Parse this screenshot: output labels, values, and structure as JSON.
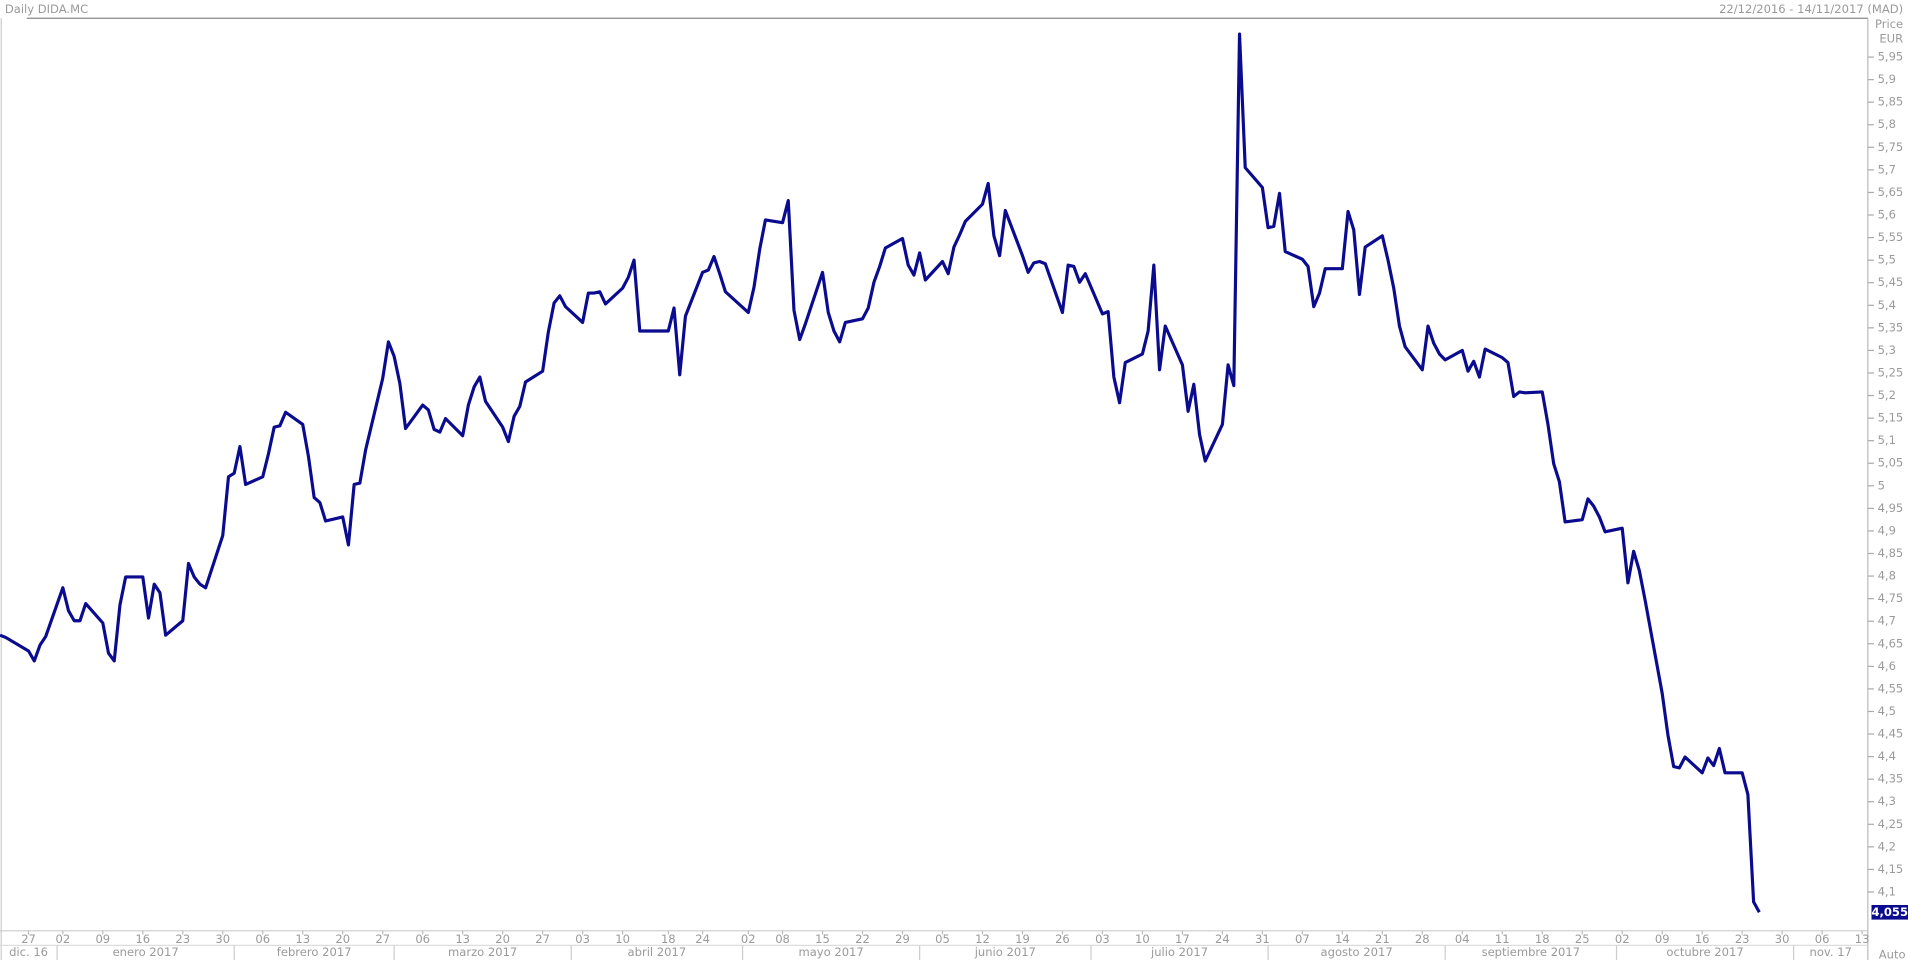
{
  "header": {
    "title": "Daily DIDA.MC",
    "range": "22/12/2016 - 14/11/2017 (MAD)",
    "scale_mode": "Auto"
  },
  "chart_data": {
    "type": "line",
    "y_axis_label": "Price",
    "y_axis_unit": "EUR",
    "xlim": [
      "2016-12-22",
      "2017-11-14"
    ],
    "ylim": [
      4.014,
      6.036
    ],
    "yticks": [
      {
        "value": 4.1,
        "label": "4,1"
      },
      {
        "value": 4.15,
        "label": "4,15"
      },
      {
        "value": 4.2,
        "label": "4,2"
      },
      {
        "value": 4.25,
        "label": "4,25"
      },
      {
        "value": 4.3,
        "label": "4,3"
      },
      {
        "value": 4.35,
        "label": "4,35"
      },
      {
        "value": 4.4,
        "label": "4,4"
      },
      {
        "value": 4.45,
        "label": "4,45"
      },
      {
        "value": 4.5,
        "label": "4,5"
      },
      {
        "value": 4.55,
        "label": "4,55"
      },
      {
        "value": 4.6,
        "label": "4,6"
      },
      {
        "value": 4.65,
        "label": "4,65"
      },
      {
        "value": 4.7,
        "label": "4,7"
      },
      {
        "value": 4.75,
        "label": "4,75"
      },
      {
        "value": 4.8,
        "label": "4,8"
      },
      {
        "value": 4.85,
        "label": "4,85"
      },
      {
        "value": 4.9,
        "label": "4,9"
      },
      {
        "value": 4.95,
        "label": "4,95"
      },
      5,
      {
        "value": 5.05,
        "label": "5,05"
      },
      {
        "value": 5.1,
        "label": "5,1"
      },
      {
        "value": 5.15,
        "label": "5,15"
      },
      {
        "value": 5.2,
        "label": "5,2"
      },
      {
        "value": 5.25,
        "label": "5,25"
      },
      {
        "value": 5.3,
        "label": "5,3"
      },
      {
        "value": 5.35,
        "label": "5,35"
      },
      {
        "value": 5.4,
        "label": "5,4"
      },
      {
        "value": 5.45,
        "label": "5,45"
      },
      {
        "value": 5.5,
        "label": "5,5"
      },
      {
        "value": 5.55,
        "label": "5,55"
      },
      {
        "value": 5.6,
        "label": "5,6"
      },
      {
        "value": 5.65,
        "label": "5,65"
      },
      {
        "value": 5.7,
        "label": "5,7"
      },
      {
        "value": 5.75,
        "label": "5,75"
      },
      {
        "value": 5.8,
        "label": "5,8"
      },
      {
        "value": 5.85,
        "label": "5,85"
      },
      {
        "value": 5.9,
        "label": "5,9"
      },
      {
        "value": 5.95,
        "label": "5,95"
      }
    ],
    "xticks": [
      {
        "value": "2016-12-27",
        "label": "27"
      },
      {
        "value": "2017-01-02",
        "label": "02"
      },
      {
        "value": "2017-01-09",
        "label": "09"
      },
      {
        "value": "2017-01-16",
        "label": "16"
      },
      {
        "value": "2017-01-23",
        "label": "23"
      },
      {
        "value": "2017-01-30",
        "label": "30"
      },
      {
        "value": "2017-02-06",
        "label": "06"
      },
      {
        "value": "2017-02-13",
        "label": "13"
      },
      {
        "value": "2017-02-20",
        "label": "20"
      },
      {
        "value": "2017-02-27",
        "label": "27"
      },
      {
        "value": "2017-03-06",
        "label": "06"
      },
      {
        "value": "2017-03-13",
        "label": "13"
      },
      {
        "value": "2017-03-20",
        "label": "20"
      },
      {
        "value": "2017-03-27",
        "label": "27"
      },
      {
        "value": "2017-04-03",
        "label": "03"
      },
      {
        "value": "2017-04-10",
        "label": "10"
      },
      {
        "value": "2017-04-18",
        "label": "18"
      },
      {
        "value": "2017-04-24",
        "label": "24"
      },
      {
        "value": "2017-05-02",
        "label": "02"
      },
      {
        "value": "2017-05-08",
        "label": "08"
      },
      {
        "value": "2017-05-15",
        "label": "15"
      },
      {
        "value": "2017-05-22",
        "label": "22"
      },
      {
        "value": "2017-05-29",
        "label": "29"
      },
      {
        "value": "2017-06-05",
        "label": "05"
      },
      {
        "value": "2017-06-12",
        "label": "12"
      },
      {
        "value": "2017-06-19",
        "label": "19"
      },
      {
        "value": "2017-06-26",
        "label": "26"
      },
      {
        "value": "2017-07-03",
        "label": "03"
      },
      {
        "value": "2017-07-10",
        "label": "10"
      },
      {
        "value": "2017-07-17",
        "label": "17"
      },
      {
        "value": "2017-07-24",
        "label": "24"
      },
      {
        "value": "2017-07-31",
        "label": "31"
      },
      {
        "value": "2017-08-07",
        "label": "07"
      },
      {
        "value": "2017-08-14",
        "label": "14"
      },
      {
        "value": "2017-08-21",
        "label": "21"
      },
      {
        "value": "2017-08-28",
        "label": "28"
      },
      {
        "value": "2017-09-04",
        "label": "04"
      },
      {
        "value": "2017-09-11",
        "label": "11"
      },
      {
        "value": "2017-09-18",
        "label": "18"
      },
      {
        "value": "2017-09-25",
        "label": "25"
      },
      {
        "value": "2017-10-02",
        "label": "02"
      },
      {
        "value": "2017-10-09",
        "label": "09"
      },
      {
        "value": "2017-10-16",
        "label": "16"
      },
      {
        "value": "2017-10-23",
        "label": "23"
      },
      {
        "value": "2017-10-30",
        "label": "30"
      },
      {
        "value": "2017-11-06",
        "label": "06"
      },
      {
        "value": "2017-11-13",
        "label": "13"
      }
    ],
    "month_labels": [
      {
        "value": "2016-12-01",
        "label": "dic. 16"
      },
      {
        "value": "2017-01-01",
        "label": "enero 2017"
      },
      {
        "value": "2017-02-01",
        "label": "febrero 2017"
      },
      {
        "value": "2017-03-01",
        "label": "marzo 2017"
      },
      {
        "value": "2017-04-01",
        "label": "abril 2017"
      },
      {
        "value": "2017-05-01",
        "label": "mayo 2017"
      },
      {
        "value": "2017-06-01",
        "label": "junio 2017"
      },
      {
        "value": "2017-07-01",
        "label": "julio 2017"
      },
      {
        "value": "2017-08-01",
        "label": "agosto 2017"
      },
      {
        "value": "2017-09-01",
        "label": "septiembre 2017"
      },
      {
        "value": "2017-10-01",
        "label": "octubre 2017"
      },
      {
        "value": "2017-11-01",
        "label": "nov. 17"
      }
    ],
    "last_price": {
      "value": 4.055,
      "label": "4,055"
    },
    "series": [
      {
        "name": "DIDA.MC",
        "color": "#0b0b8f",
        "x": [
          "2016-12-22",
          "2016-12-23",
          "2016-12-27",
          "2016-12-28",
          "2016-12-29",
          "2016-12-30",
          "2017-01-02",
          "2017-01-03",
          "2017-01-04",
          "2017-01-05",
          "2017-01-06",
          "2017-01-09",
          "2017-01-10",
          "2017-01-11",
          "2017-01-12",
          "2017-01-13",
          "2017-01-16",
          "2017-01-17",
          "2017-01-18",
          "2017-01-19",
          "2017-01-20",
          "2017-01-23",
          "2017-01-24",
          "2017-01-25",
          "2017-01-26",
          "2017-01-27",
          "2017-01-30",
          "2017-01-31",
          "2017-02-01",
          "2017-02-02",
          "2017-02-03",
          "2017-02-06",
          "2017-02-07",
          "2017-02-08",
          "2017-02-09",
          "2017-02-10",
          "2017-02-13",
          "2017-02-14",
          "2017-02-15",
          "2017-02-16",
          "2017-02-17",
          "2017-02-20",
          "2017-02-21",
          "2017-02-22",
          "2017-02-23",
          "2017-02-24",
          "2017-02-27",
          "2017-02-28",
          "2017-03-01",
          "2017-03-02",
          "2017-03-03",
          "2017-03-06",
          "2017-03-07",
          "2017-03-08",
          "2017-03-09",
          "2017-03-10",
          "2017-03-13",
          "2017-03-14",
          "2017-03-15",
          "2017-03-16",
          "2017-03-17",
          "2017-03-20",
          "2017-03-21",
          "2017-03-22",
          "2017-03-23",
          "2017-03-24",
          "2017-03-27",
          "2017-03-28",
          "2017-03-29",
          "2017-03-30",
          "2017-03-31",
          "2017-04-03",
          "2017-04-04",
          "2017-04-05",
          "2017-04-06",
          "2017-04-07",
          "2017-04-10",
          "2017-04-11",
          "2017-04-12",
          "2017-04-13",
          "2017-04-18",
          "2017-04-19",
          "2017-04-20",
          "2017-04-21",
          "2017-04-24",
          "2017-04-25",
          "2017-04-26",
          "2017-04-27",
          "2017-04-28",
          "2017-05-02",
          "2017-05-03",
          "2017-05-04",
          "2017-05-05",
          "2017-05-08",
          "2017-05-09",
          "2017-05-10",
          "2017-05-11",
          "2017-05-12",
          "2017-05-15",
          "2017-05-16",
          "2017-05-17",
          "2017-05-18",
          "2017-05-19",
          "2017-05-22",
          "2017-05-23",
          "2017-05-24",
          "2017-05-25",
          "2017-05-26",
          "2017-05-29",
          "2017-05-30",
          "2017-05-31",
          "2017-06-01",
          "2017-06-02",
          "2017-06-05",
          "2017-06-06",
          "2017-06-07",
          "2017-06-08",
          "2017-06-09",
          "2017-06-12",
          "2017-06-13",
          "2017-06-14",
          "2017-06-15",
          "2017-06-16",
          "2017-06-19",
          "2017-06-20",
          "2017-06-21",
          "2017-06-22",
          "2017-06-23",
          "2017-06-26",
          "2017-06-27",
          "2017-06-28",
          "2017-06-29",
          "2017-06-30",
          "2017-07-03",
          "2017-07-04",
          "2017-07-05",
          "2017-07-06",
          "2017-07-07",
          "2017-07-10",
          "2017-07-11",
          "2017-07-12",
          "2017-07-13",
          "2017-07-14",
          "2017-07-17",
          "2017-07-18",
          "2017-07-19",
          "2017-07-20",
          "2017-07-21",
          "2017-07-24",
          "2017-07-25",
          "2017-07-26",
          "2017-07-27",
          "2017-07-28",
          "2017-07-31",
          "2017-08-01",
          "2017-08-02",
          "2017-08-03",
          "2017-08-04",
          "2017-08-07",
          "2017-08-08",
          "2017-08-09",
          "2017-08-10",
          "2017-08-11",
          "2017-08-14",
          "2017-08-15",
          "2017-08-16",
          "2017-08-17",
          "2017-08-18",
          "2017-08-21",
          "2017-08-22",
          "2017-08-23",
          "2017-08-24",
          "2017-08-25",
          "2017-08-28",
          "2017-08-29",
          "2017-08-30",
          "2017-08-31",
          "2017-09-01",
          "2017-09-04",
          "2017-09-05",
          "2017-09-06",
          "2017-09-07",
          "2017-09-08",
          "2017-09-11",
          "2017-09-12",
          "2017-09-13",
          "2017-09-14",
          "2017-09-15",
          "2017-09-18",
          "2017-09-19",
          "2017-09-20",
          "2017-09-21",
          "2017-09-22",
          "2017-09-25",
          "2017-09-26",
          "2017-09-27",
          "2017-09-28",
          "2017-09-29",
          "2017-10-02",
          "2017-10-03",
          "2017-10-04",
          "2017-10-05",
          "2017-10-06",
          "2017-10-09",
          "2017-10-10",
          "2017-10-11",
          "2017-10-12",
          "2017-10-13",
          "2017-10-16",
          "2017-10-17",
          "2017-10-18",
          "2017-10-19",
          "2017-10-20",
          "2017-10-23",
          "2017-10-24",
          "2017-10-25",
          "2017-10-26"
        ],
        "values": [
          4.669,
          4.664,
          4.634,
          4.612,
          4.647,
          4.666,
          4.774,
          4.723,
          4.701,
          4.701,
          4.739,
          4.696,
          4.629,
          4.612,
          4.736,
          4.798,
          4.798,
          4.707,
          4.782,
          4.763,
          4.669,
          4.701,
          4.828,
          4.798,
          4.782,
          4.774,
          4.89,
          5.02,
          5.028,
          5.087,
          5.003,
          5.02,
          5.071,
          5.13,
          5.133,
          5.163,
          5.136,
          5.065,
          4.974,
          4.963,
          4.922,
          4.931,
          4.869,
          5.003,
          5.006,
          5.079,
          5.238,
          5.319,
          5.287,
          5.227,
          5.127,
          5.179,
          5.168,
          5.125,
          5.119,
          5.149,
          5.111,
          5.179,
          5.219,
          5.241,
          5.187,
          5.13,
          5.098,
          5.154,
          5.176,
          5.23,
          5.254,
          5.341,
          5.405,
          5.421,
          5.397,
          5.362,
          5.427,
          5.427,
          5.43,
          5.403,
          5.438,
          5.462,
          5.5,
          5.343,
          5.343,
          5.394,
          5.246,
          5.376,
          5.473,
          5.478,
          5.508,
          5.47,
          5.43,
          5.384,
          5.44,
          5.524,
          5.589,
          5.583,
          5.632,
          5.389,
          5.324,
          5.359,
          5.473,
          5.384,
          5.343,
          5.319,
          5.362,
          5.37,
          5.394,
          5.451,
          5.486,
          5.527,
          5.548,
          5.489,
          5.467,
          5.516,
          5.456,
          5.497,
          5.47,
          5.529,
          5.556,
          5.586,
          5.624,
          5.67,
          5.554,
          5.51,
          5.61,
          5.51,
          5.473,
          5.494,
          5.497,
          5.492,
          5.384,
          5.489,
          5.486,
          5.451,
          5.47,
          5.381,
          5.386,
          5.241,
          5.184,
          5.273,
          5.292,
          5.343,
          5.489,
          5.257,
          5.354,
          5.268,
          5.165,
          5.225,
          5.114,
          5.055,
          5.136,
          5.268,
          5.222,
          6.001,
          5.705,
          5.661,
          5.572,
          5.575,
          5.648,
          5.519,
          5.502,
          5.486,
          5.397,
          5.427,
          5.481,
          5.481,
          5.608,
          5.567,
          5.424,
          5.529,
          5.554,
          5.5,
          5.438,
          5.354,
          5.308,
          5.257,
          5.354,
          5.316,
          5.292,
          5.279,
          5.3,
          5.254,
          5.276,
          5.241,
          5.303,
          5.284,
          5.273,
          5.198,
          5.208,
          5.206,
          5.208,
          5.136,
          5.049,
          5.009,
          4.92,
          4.925,
          4.971,
          4.955,
          4.931,
          4.898,
          4.906,
          4.785,
          4.855,
          4.812,
          4.747,
          4.54,
          4.448,
          4.378,
          4.375,
          4.399,
          4.364,
          4.397,
          4.38,
          4.418,
          4.364,
          4.364,
          4.316,
          4.078,
          4.055
        ]
      }
    ]
  }
}
